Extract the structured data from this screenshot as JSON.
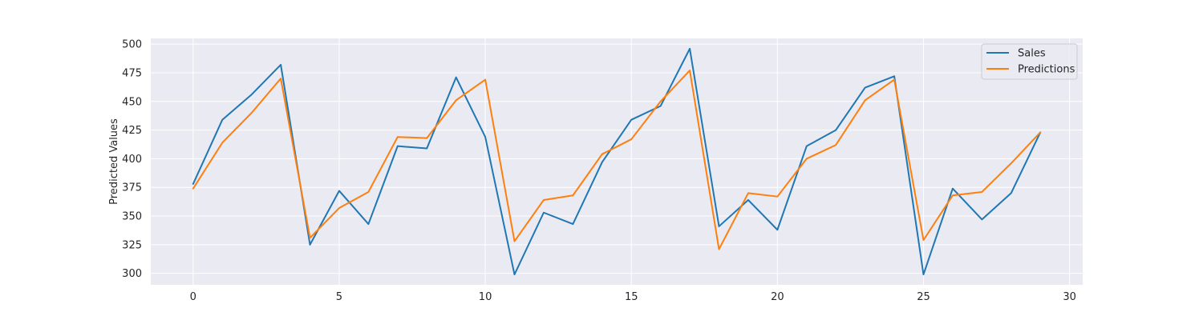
{
  "chart_data": {
    "type": "line",
    "xlabel": "",
    "ylabel": "Predicted Values",
    "xlim": [
      -1.45,
      30.45
    ],
    "ylim": [
      290,
      505
    ],
    "xticks": [
      0,
      5,
      10,
      15,
      20,
      25,
      30
    ],
    "yticks": [
      300,
      325,
      350,
      375,
      400,
      425,
      450,
      475,
      500
    ],
    "grid": true,
    "legend_position": "top-right",
    "x": [
      0,
      1,
      2,
      3,
      4,
      5,
      6,
      7,
      8,
      9,
      10,
      11,
      12,
      13,
      14,
      15,
      16,
      17,
      18,
      19,
      20,
      21,
      22,
      23,
      24,
      25,
      26,
      27,
      28,
      29
    ],
    "series": [
      {
        "name": "Sales",
        "color": "#1f77b4",
        "values": [
          378,
          434,
          456,
          482,
          325,
          372,
          343,
          411,
          409,
          471,
          419,
          299,
          353,
          343,
          397,
          434,
          446,
          496,
          341,
          364,
          338,
          411,
          425,
          462,
          472,
          299,
          374,
          347,
          370,
          423
        ]
      },
      {
        "name": "Predictions",
        "color": "#ff7f0e",
        "values": [
          374,
          414,
          440,
          470,
          331,
          357,
          371,
          419,
          418,
          451,
          469,
          328,
          364,
          368,
          404,
          417,
          450,
          477,
          321,
          370,
          367,
          400,
          412,
          451,
          469,
          329,
          368,
          371,
          396,
          423
        ]
      }
    ]
  }
}
